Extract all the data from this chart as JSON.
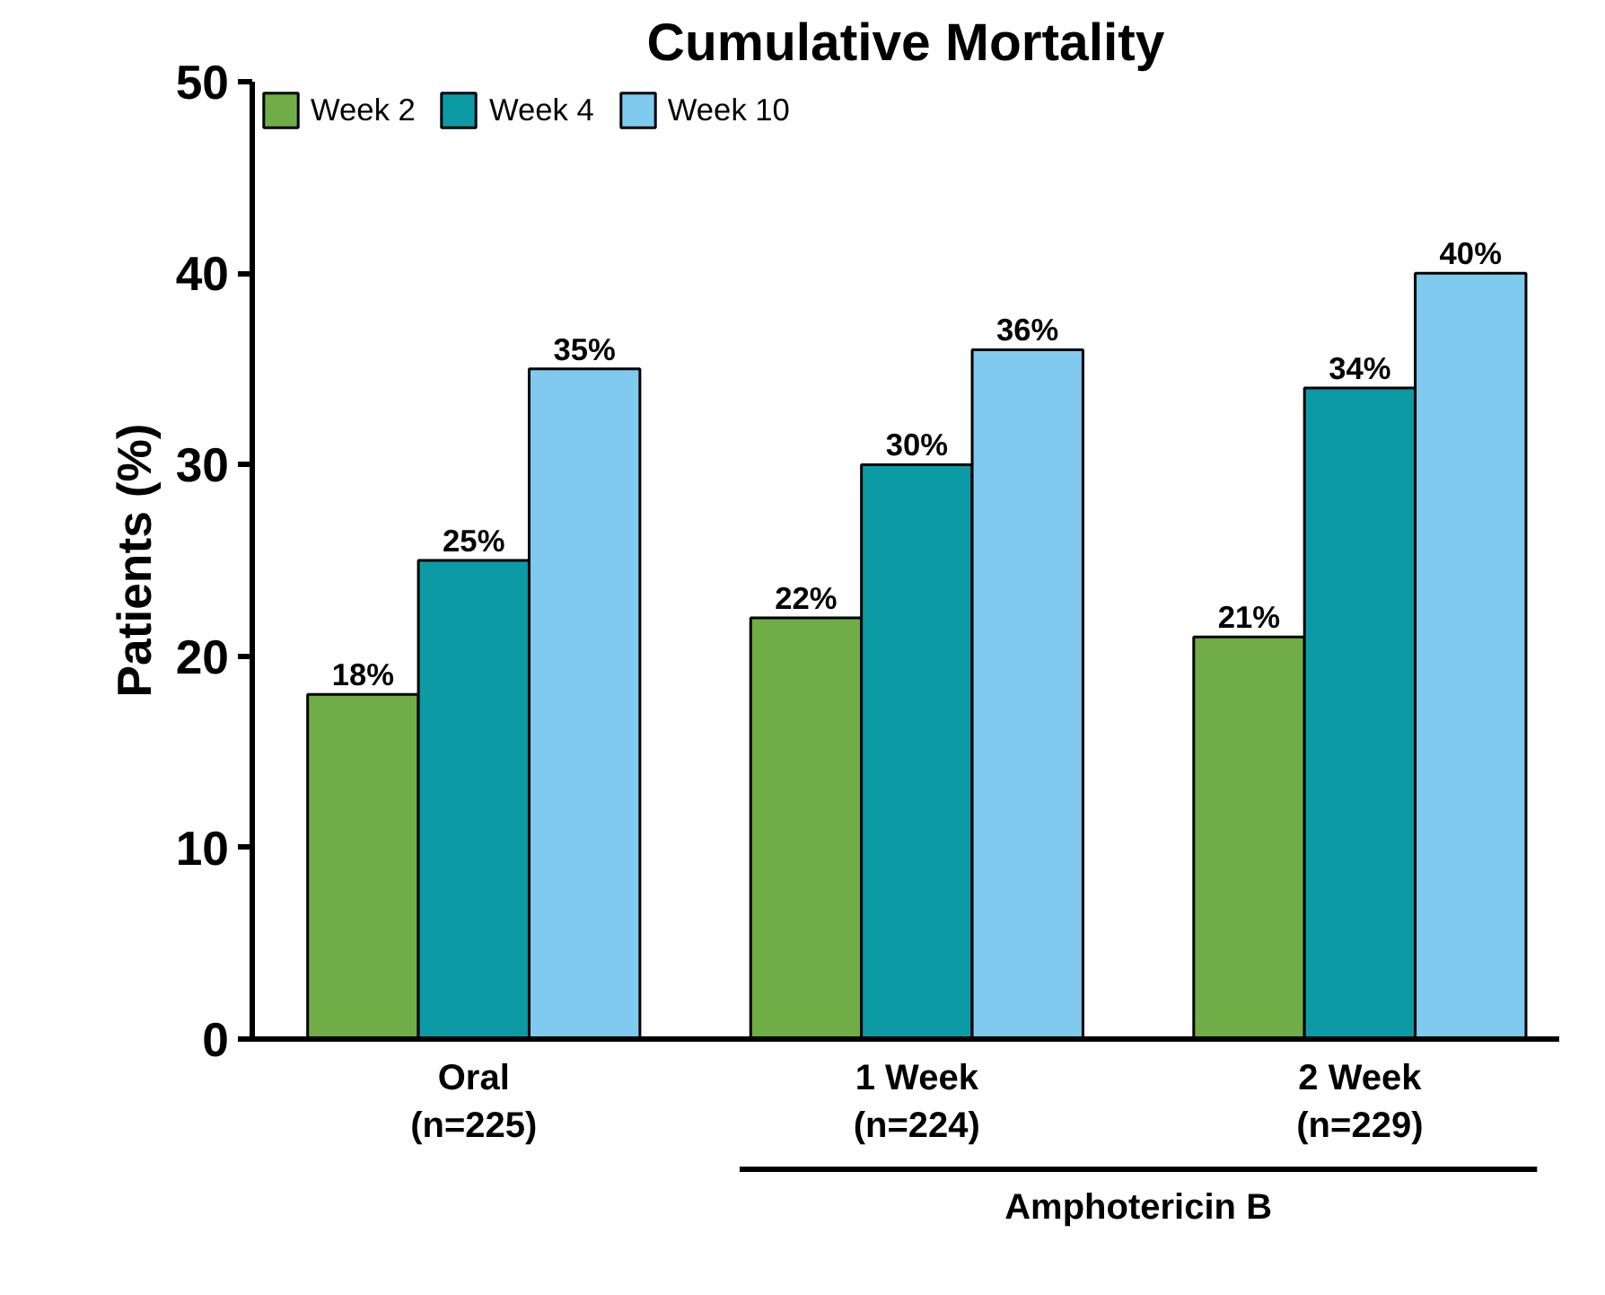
{
  "chart_data": {
    "type": "bar",
    "title": "Cumulative Mortality",
    "ylabel": "Patients (%)",
    "categories": [
      "Oral\n(n=225)",
      "1 Week\n(n=224)",
      "2 Week\n(n=229)"
    ],
    "series": [
      {
        "name": "Week 2",
        "color": "#70ad47",
        "values": [
          18,
          22,
          21
        ],
        "value_labels": [
          "18%",
          "22%",
          "21%"
        ]
      },
      {
        "name": "Week 4",
        "color": "#0c9ba5",
        "values": [
          25,
          30,
          34
        ],
        "value_labels": [
          "25%",
          "30%",
          "34%"
        ]
      },
      {
        "name": "Week 10",
        "color": "#80caef",
        "values": [
          35,
          36,
          40
        ],
        "value_labels": [
          "35%",
          "36%",
          "40%"
        ]
      }
    ],
    "ylim": [
      0,
      50
    ],
    "yticks": [
      0,
      10,
      20,
      30,
      40,
      50
    ],
    "grid": false,
    "legend": "top left",
    "annotations": [
      "Amphotericin B"
    ]
  }
}
